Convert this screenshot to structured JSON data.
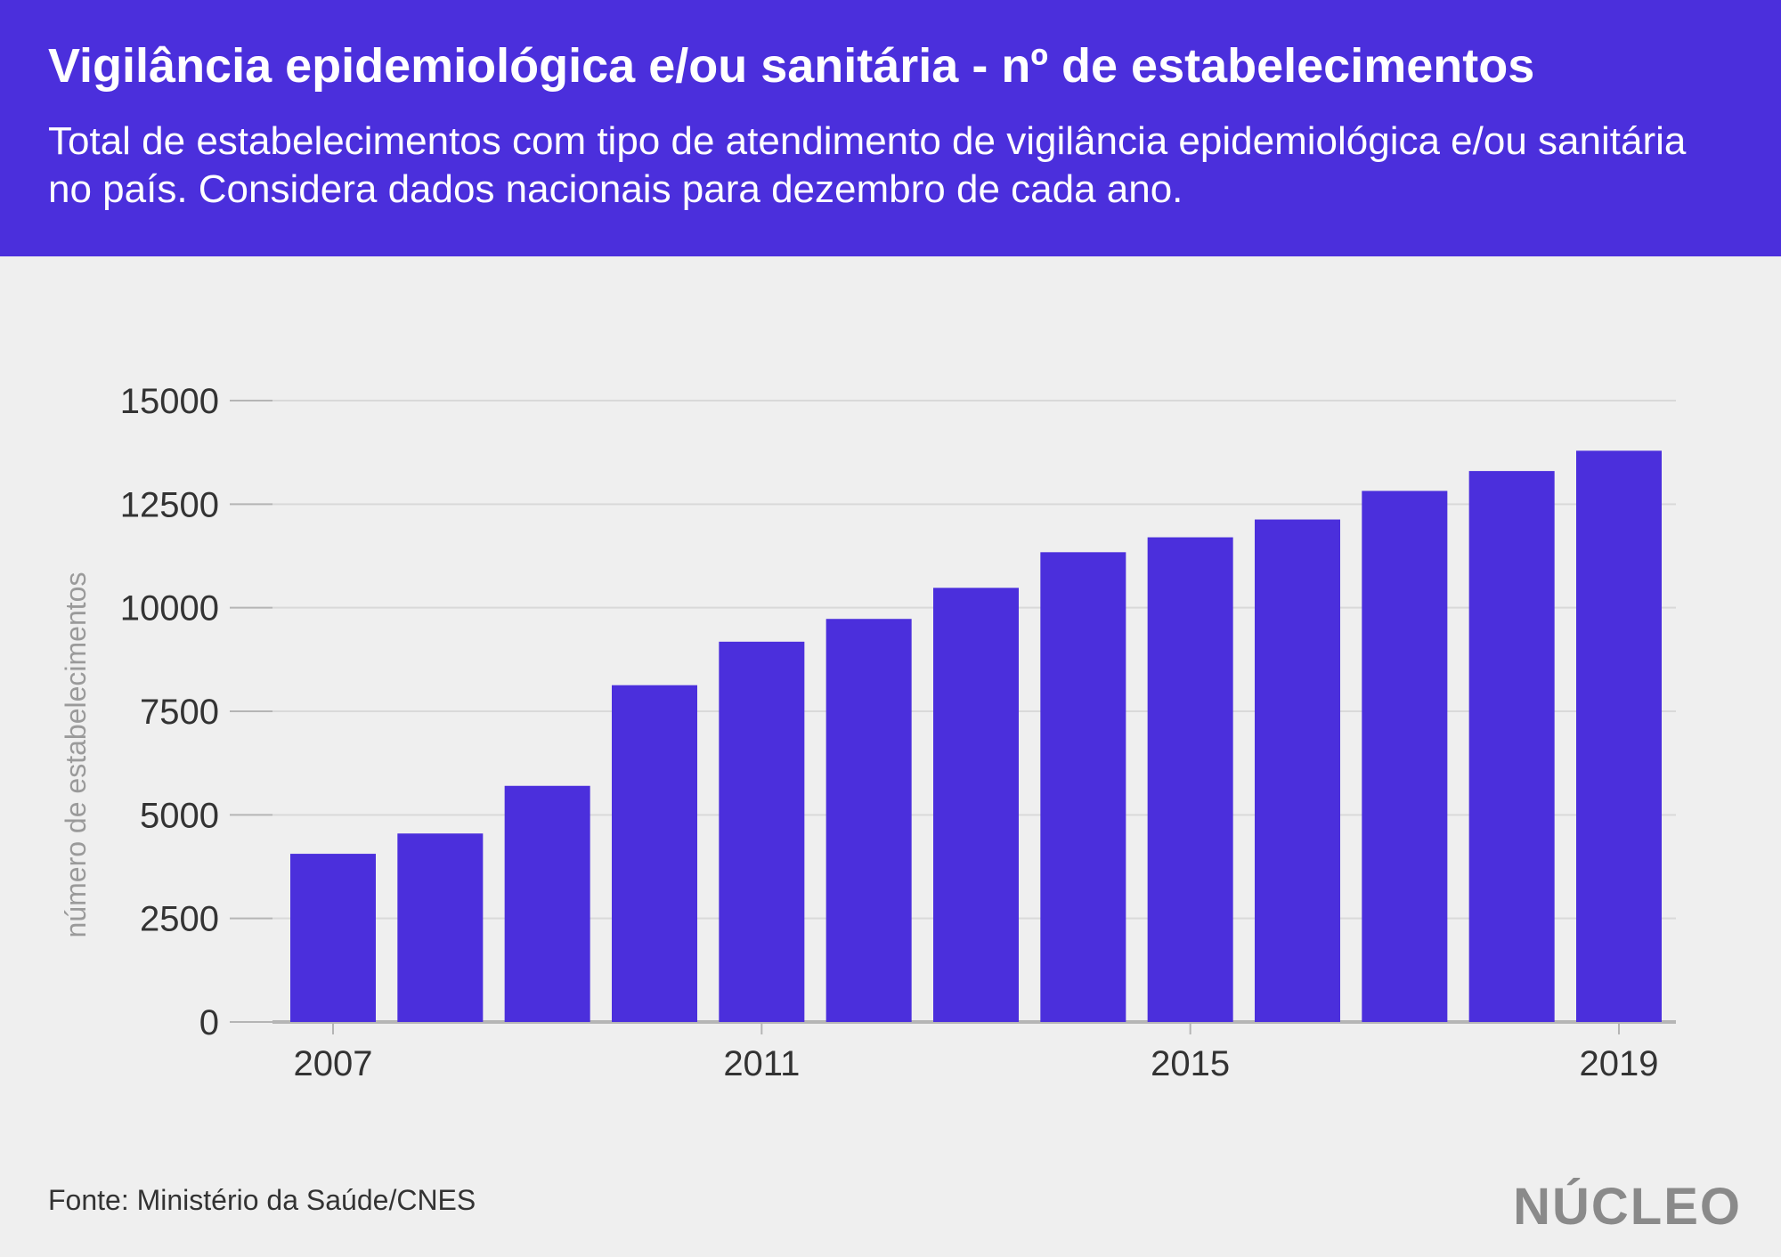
{
  "header": {
    "title": "Vigilância epidemiológica e/ou sanitária - nº de estabelecimentos",
    "subtitle": "Total de estabelecimentos com tipo de atendimento de vigilância epidemiológica e/ou sanitária no país. Considera dados nacionais para dezembro de cada ano."
  },
  "colors": {
    "bar": "#4b2fdc",
    "header_bg": "#4b2fdc",
    "background": "#efefef",
    "grid": "#d9d9d9"
  },
  "chart_data": {
    "type": "bar",
    "categories": [
      "2007",
      "2008",
      "2009",
      "2010",
      "2011",
      "2012",
      "2013",
      "2014",
      "2015",
      "2016",
      "2017",
      "2018",
      "2019"
    ],
    "values": [
      4060,
      4550,
      5700,
      8130,
      9180,
      9730,
      10480,
      11340,
      11700,
      12130,
      12820,
      13300,
      13790
    ],
    "x_tick_labels": [
      "2007",
      "2011",
      "2015",
      "2019"
    ],
    "y_ticks": [
      0,
      2500,
      5000,
      7500,
      10000,
      12500,
      15000
    ],
    "ylim": [
      0,
      15000
    ],
    "title": "",
    "xlabel": "",
    "ylabel": "número de estabelecimentos",
    "grid": true
  },
  "footer": {
    "source": "Fonte: Ministério da Saúde/CNES",
    "logo": "NÚCLEO"
  }
}
